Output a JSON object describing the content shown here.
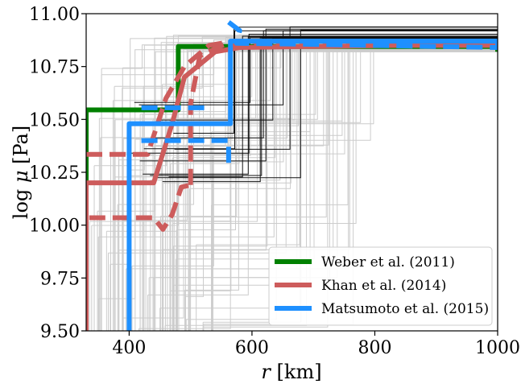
{
  "chart_data": {
    "type": "line",
    "title": "",
    "xlabel_var": "r",
    "xlabel_unit": " [km]",
    "ylabel_prefix": "log ",
    "ylabel_var": "μ",
    "ylabel_unit": " [Pa]",
    "xlim": [
      330,
      1000
    ],
    "ylim": [
      9.5,
      11.0
    ],
    "xticks": [
      400,
      600,
      800,
      1000
    ],
    "yticks": [
      9.5,
      9.75,
      10.0,
      10.25,
      10.5,
      10.75,
      11.0
    ],
    "xtick_labels": [
      "400",
      "600",
      "800",
      "1000"
    ],
    "ytick_labels": [
      "9.50",
      "9.75",
      "10.00",
      "10.25",
      "10.50",
      "10.75",
      "11.00"
    ],
    "grid": false,
    "legend_position": "lower-right",
    "background_ensemble": {
      "gray_color": "#cccccc",
      "black_color": "#111111",
      "gray_curve_count": 90,
      "black_curve_count": 14
    },
    "series": [
      {
        "name": "Weber et al. (2011)",
        "color": "#008000",
        "style": "solid",
        "points": [
          [
            330,
            10.21
          ],
          [
            330,
            10.545
          ],
          [
            480,
            10.545
          ],
          [
            480,
            10.845
          ],
          [
            1000,
            10.845
          ],
          [
            1000,
            10.82
          ]
        ]
      },
      {
        "name": "Khan et al. (2014)",
        "color": "#cd5c5c",
        "style": "solid",
        "points": [
          [
            330,
            9.5
          ],
          [
            330,
            10.2
          ],
          [
            440,
            10.2
          ],
          [
            470,
            10.48
          ],
          [
            490,
            10.7
          ],
          [
            540,
            10.82
          ],
          [
            580,
            10.84
          ],
          [
            700,
            10.845
          ],
          [
            840,
            10.85
          ],
          [
            1000,
            10.85
          ]
        ]
      },
      {
        "name": "",
        "color": "#cd5c5c",
        "style": "dashed",
        "points": [
          [
            330,
            10.335
          ],
          [
            430,
            10.335
          ],
          [
            460,
            10.6
          ],
          [
            490,
            10.75
          ],
          [
            530,
            10.85
          ],
          [
            570,
            10.87
          ],
          [
            700,
            10.86
          ],
          [
            840,
            10.855
          ]
        ]
      },
      {
        "name": "",
        "color": "#cd5c5c",
        "style": "dashed",
        "points": [
          [
            335,
            10.035
          ],
          [
            440,
            10.035
          ],
          [
            455,
            9.98
          ],
          [
            470,
            10.05
          ],
          [
            485,
            10.18
          ],
          [
            500,
            10.19
          ]
        ]
      },
      {
        "name": "",
        "color": "#cd5c5c",
        "style": "dashed",
        "points": [
          [
            500,
            10.19
          ],
          [
            500,
            10.575
          ],
          [
            515,
            10.8
          ],
          [
            555,
            10.855
          ],
          [
            700,
            10.86
          ]
        ]
      },
      {
        "name": "Matsumoto et al. (2015)",
        "color": "#1e90ff",
        "style": "solid",
        "points": [
          [
            400,
            9.5
          ],
          [
            400,
            10.48
          ],
          [
            565,
            10.48
          ],
          [
            565,
            10.87
          ],
          [
            1000,
            10.87
          ],
          [
            1000,
            10.83
          ]
        ]
      },
      {
        "name": "",
        "color": "#1e90ff",
        "style": "dashed",
        "points": [
          [
            420,
            10.555
          ],
          [
            525,
            10.555
          ]
        ]
      },
      {
        "name": "",
        "color": "#1e90ff",
        "style": "dashed",
        "points": [
          [
            420,
            10.4
          ],
          [
            562,
            10.4
          ],
          [
            562,
            10.28
          ]
        ]
      },
      {
        "name": "",
        "color": "#1e90ff",
        "style": "dashed",
        "points": [
          [
            562,
            10.96
          ],
          [
            580,
            10.92
          ],
          [
            575,
            10.86
          ],
          [
            700,
            10.855
          ],
          [
            1000,
            10.84
          ]
        ]
      }
    ],
    "legend": [
      {
        "label": "Weber et al. (2011)",
        "color": "#008000"
      },
      {
        "label": "Khan et al. (2014)",
        "color": "#cd5c5c"
      },
      {
        "label": "Matsumoto et al. (2015)",
        "color": "#1e90ff"
      }
    ]
  }
}
